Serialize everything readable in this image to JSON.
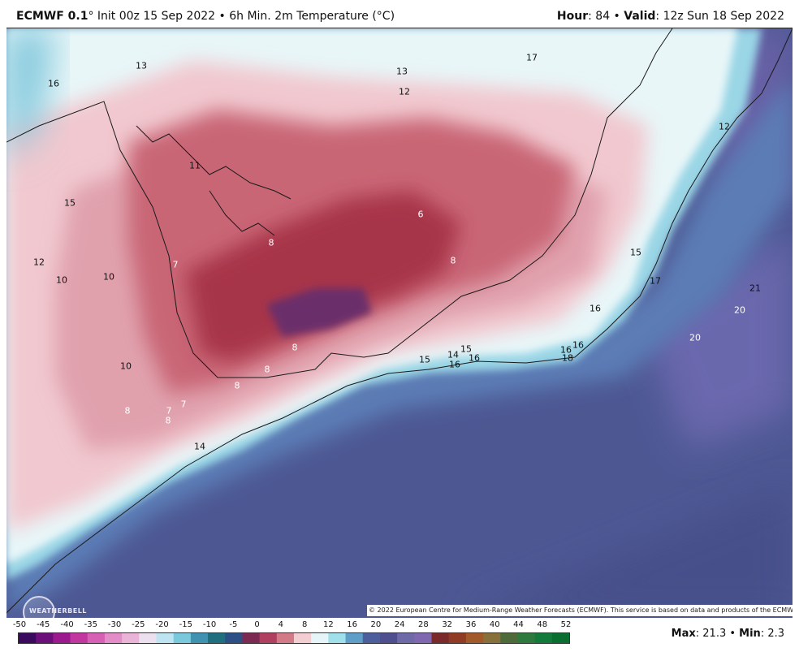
{
  "header": {
    "model": "ECMWF 0.1",
    "init_text": "° Init 00z 15 Sep 2022 • 6h Min. 2m Temperature (°C)",
    "hour_label": "Hour",
    "hour_value": ": 84 • ",
    "valid_label": "Valid",
    "valid_value": ": 12z Sun 18 Sep 2022"
  },
  "map_labels": [
    {
      "text": "13",
      "tone": "dark"
    },
    {
      "text": "16",
      "tone": "dark"
    },
    {
      "text": "13",
      "tone": "dark"
    },
    {
      "text": "12",
      "tone": "dark"
    },
    {
      "text": "17",
      "tone": "dark"
    },
    {
      "text": "12",
      "tone": "dark"
    },
    {
      "text": "11",
      "tone": "dark"
    },
    {
      "text": "15",
      "tone": "dark"
    },
    {
      "text": "6",
      "tone": "light"
    },
    {
      "text": "8",
      "tone": "light"
    },
    {
      "text": "8",
      "tone": "light"
    },
    {
      "text": "7",
      "tone": "light"
    },
    {
      "text": "12",
      "tone": "dark"
    },
    {
      "text": "10",
      "tone": "dark"
    },
    {
      "text": "10",
      "tone": "dark"
    },
    {
      "text": "15",
      "tone": "dark"
    },
    {
      "text": "17",
      "tone": "dark"
    },
    {
      "text": "21",
      "tone": "dark"
    },
    {
      "text": "20",
      "tone": "light"
    },
    {
      "text": "16",
      "tone": "dark"
    },
    {
      "text": "20",
      "tone": "light"
    },
    {
      "text": "8",
      "tone": "light"
    },
    {
      "text": "8",
      "tone": "light"
    },
    {
      "text": "15",
      "tone": "dark"
    },
    {
      "text": "14",
      "tone": "dark"
    },
    {
      "text": "15",
      "tone": "dark"
    },
    {
      "text": "16",
      "tone": "dark"
    },
    {
      "text": "16",
      "tone": "dark"
    },
    {
      "text": "16",
      "tone": "dark"
    },
    {
      "text": "16",
      "tone": "dark"
    },
    {
      "text": "18",
      "tone": "dark"
    },
    {
      "text": "10",
      "tone": "dark"
    },
    {
      "text": "8",
      "tone": "light"
    },
    {
      "text": "7",
      "tone": "light"
    },
    {
      "text": "7",
      "tone": "light"
    },
    {
      "text": "8",
      "tone": "light"
    },
    {
      "text": "8",
      "tone": "light"
    },
    {
      "text": "14",
      "tone": "dark"
    }
  ],
  "copyright": "© 2022 European Centre for Medium-Range Weather Forecasts (ECMWF). This service is based on data and products of the ECMWF.",
  "logo_text": "WEATHERBELL",
  "colorbar": {
    "ticks": [
      "-50",
      "-45",
      "-40",
      "-35",
      "-30",
      "-25",
      "-20",
      "-15",
      "-10",
      "-5",
      "0",
      "4",
      "8",
      "12",
      "16",
      "20",
      "24",
      "28",
      "32",
      "36",
      "40",
      "44",
      "48",
      "52"
    ],
    "colors": [
      "#3a0a5e",
      "#6b0f7a",
      "#9b1a8e",
      "#c2379f",
      "#d660b4",
      "#e28cc8",
      "#e9b4d8",
      "#ede0ee",
      "#bde4f0",
      "#7ac8dc",
      "#3f93b0",
      "#1f6f7e",
      "#2c4f86",
      "#7d2a52",
      "#b04060",
      "#d37a88",
      "#f2cdd2",
      "#e6f6f8",
      "#9fe0ea",
      "#5f9ec6",
      "#4c5f9c",
      "#4f4f90",
      "#6e6aa8",
      "#8068b0",
      "#7a2a2a",
      "#903c24",
      "#a25a2a",
      "#88703a",
      "#4e6a3a",
      "#2e7a3e",
      "#127a3a",
      "#0a6e30"
    ]
  },
  "footer": {
    "max_label": "Max",
    "max_value": ": 21.3 • ",
    "min_label": "Min",
    "min_value": ": 2.3"
  }
}
